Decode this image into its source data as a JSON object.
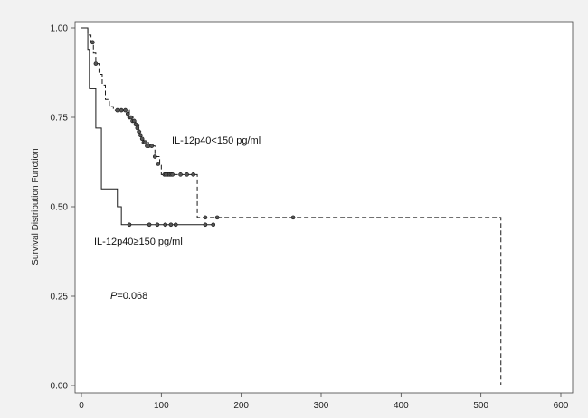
{
  "chart_data": {
    "type": "line",
    "title": "",
    "xlabel": "",
    "ylabel": "Survival Distribution Function",
    "xlim": [
      0,
      600
    ],
    "ylim": [
      0,
      1
    ],
    "x_ticks": [
      "0",
      "100",
      "200",
      "300",
      "400",
      "500",
      "600"
    ],
    "y_ticks": [
      "0.00",
      "0.25",
      "0.50",
      "0.75",
      "1.00"
    ],
    "grid": false,
    "series": [
      {
        "label": "IL-12p40<150 pg/ml",
        "style": "dashed",
        "steps": [
          [
            0,
            1.0
          ],
          [
            8,
            0.98
          ],
          [
            12,
            0.96
          ],
          [
            15,
            0.93
          ],
          [
            18,
            0.9
          ],
          [
            22,
            0.87
          ],
          [
            26,
            0.84
          ],
          [
            30,
            0.8
          ],
          [
            35,
            0.78
          ],
          [
            40,
            0.77
          ],
          [
            60,
            0.75
          ],
          [
            65,
            0.74
          ],
          [
            68,
            0.73
          ],
          [
            72,
            0.71
          ],
          [
            75,
            0.69
          ],
          [
            78,
            0.68
          ],
          [
            84,
            0.67
          ],
          [
            92,
            0.64
          ],
          [
            98,
            0.62
          ],
          [
            100,
            0.59
          ],
          [
            145,
            0.47
          ],
          [
            525,
            0.0
          ]
        ],
        "censored": [
          [
            14,
            0.96
          ],
          [
            18,
            0.9
          ],
          [
            45,
            0.77
          ],
          [
            50,
            0.77
          ],
          [
            55,
            0.77
          ],
          [
            58,
            0.76
          ],
          [
            60,
            0.75
          ],
          [
            62,
            0.75
          ],
          [
            64,
            0.74
          ],
          [
            66,
            0.74
          ],
          [
            68,
            0.73
          ],
          [
            70,
            0.72
          ],
          [
            72,
            0.71
          ],
          [
            74,
            0.7
          ],
          [
            76,
            0.69
          ],
          [
            78,
            0.68
          ],
          [
            80,
            0.68
          ],
          [
            82,
            0.67
          ],
          [
            84,
            0.67
          ],
          [
            88,
            0.67
          ],
          [
            92,
            0.64
          ],
          [
            96,
            0.62
          ],
          [
            104,
            0.59
          ],
          [
            106,
            0.59
          ],
          [
            108,
            0.59
          ],
          [
            110,
            0.59
          ],
          [
            112,
            0.59
          ],
          [
            114,
            0.59
          ],
          [
            124,
            0.59
          ],
          [
            132,
            0.59
          ],
          [
            140,
            0.59
          ],
          [
            155,
            0.47
          ],
          [
            170,
            0.47
          ],
          [
            265,
            0.47
          ]
        ]
      },
      {
        "label": "IL-12p40≥150 pg/ml",
        "style": "solid",
        "steps": [
          [
            0,
            1.0
          ],
          [
            8,
            0.94
          ],
          [
            10,
            0.83
          ],
          [
            18,
            0.72
          ],
          [
            25,
            0.55
          ],
          [
            45,
            0.5
          ],
          [
            50,
            0.45
          ],
          [
            165,
            0.45
          ]
        ],
        "censored": [
          [
            60,
            0.45
          ],
          [
            85,
            0.45
          ],
          [
            95,
            0.45
          ],
          [
            105,
            0.45
          ],
          [
            112,
            0.45
          ],
          [
            118,
            0.45
          ],
          [
            155,
            0.45
          ],
          [
            165,
            0.45
          ]
        ]
      }
    ],
    "annotations": {
      "p_letter": "P",
      "p_value": "=0.068"
    }
  }
}
